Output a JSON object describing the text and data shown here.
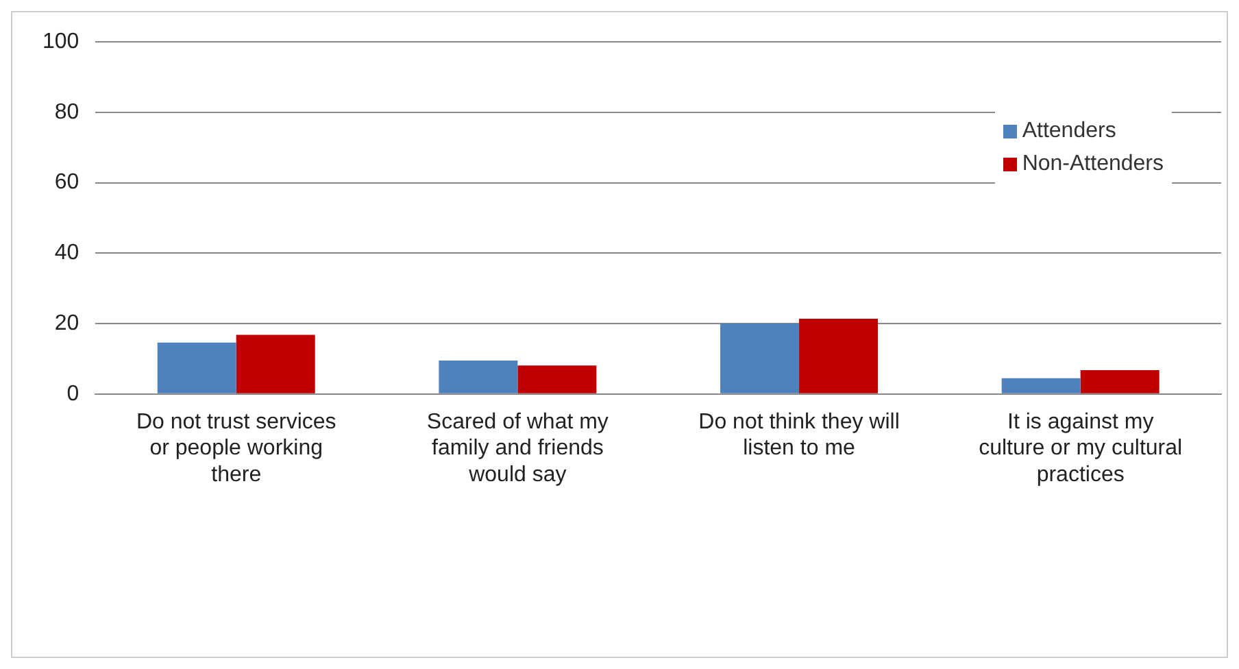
{
  "chart_data": {
    "type": "bar",
    "categories": [
      "Do not trust services or people working there",
      "Scared of what my family and friends would say",
      "Do not think they will listen to me",
      "It is against my culture or my cultural practices"
    ],
    "series": [
      {
        "name": "Attenders",
        "color": "#4f81bd",
        "values": [
          14.6,
          9.5,
          20,
          4.5
        ]
      },
      {
        "name": "Non-Attenders",
        "color": "#c00000",
        "values": [
          16.8,
          8.1,
          21.4,
          6.8
        ]
      }
    ],
    "ylim": [
      0,
      100
    ],
    "yticks": [
      0,
      20,
      40,
      60,
      80,
      100
    ],
    "grid": "y",
    "legend": "top right"
  }
}
